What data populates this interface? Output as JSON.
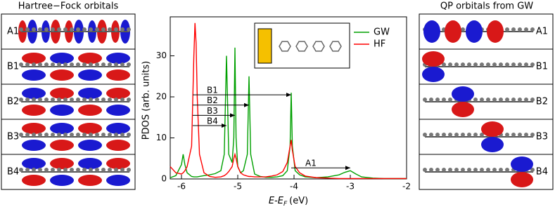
{
  "chart_data": {
    "type": "line",
    "xlabel": {
      "main": "E-E",
      "sub": "F",
      "unit": "(eV)"
    },
    "ylabel": "PDOS (arb. units)",
    "x": [
      -6.2,
      -6.1,
      -6.0,
      -5.97,
      -5.94,
      -5.9,
      -5.82,
      -5.78,
      -5.76,
      -5.74,
      -5.72,
      -5.68,
      -5.6,
      -5.5,
      -5.4,
      -5.3,
      -5.24,
      -5.2,
      -5.16,
      -5.1,
      -5.07,
      -5.05,
      -5.03,
      -5.0,
      -4.95,
      -4.9,
      -4.83,
      -4.8,
      -4.77,
      -4.7,
      -4.6,
      -4.5,
      -4.4,
      -4.3,
      -4.2,
      -4.12,
      -4.07,
      -4.05,
      -4.03,
      -3.98,
      -3.9,
      -3.8,
      -3.6,
      -3.4,
      -3.2,
      -3.1,
      -3.0,
      -2.9,
      -2.8,
      -2.6,
      -2.4,
      -2.2,
      -2.0
    ],
    "series": [
      {
        "name": "GW",
        "color": "#00a000",
        "values": [
          0.3,
          0.8,
          3.5,
          6,
          3.5,
          1.5,
          0.6,
          0.5,
          0.5,
          0.5,
          0.5,
          0.6,
          0.8,
          1,
          1.3,
          2,
          6,
          30,
          6,
          4,
          10,
          32,
          10,
          3,
          1.5,
          2,
          6,
          25,
          6,
          1.2,
          0.6,
          0.4,
          0.4,
          0.5,
          0.8,
          2,
          8,
          21,
          8,
          2,
          1,
          0.5,
          0.3,
          0.5,
          1,
          1.6,
          2,
          1.2,
          0.5,
          0.2,
          0.1,
          0.1,
          0.1
        ]
      },
      {
        "name": "HF",
        "color": "#ff0000",
        "values": [
          3,
          1.5,
          1.2,
          1.5,
          2,
          3,
          8,
          30,
          38,
          33,
          20,
          6,
          1.5,
          0.6,
          0.4,
          0.5,
          0.8,
          1.2,
          1.8,
          3,
          5,
          6,
          5,
          3,
          1.5,
          1,
          0.7,
          0.6,
          0.6,
          0.5,
          0.5,
          0.5,
          0.7,
          1,
          1.8,
          4,
          8,
          9.5,
          7,
          3,
          1.5,
          0.7,
          0.3,
          0.2,
          0.1,
          0.1,
          0.1,
          0.1,
          0.1,
          0.1,
          0.1,
          0.1,
          0.1
        ]
      }
    ],
    "xlim": [
      -6.2,
      -2
    ],
    "xticks": [
      -6,
      -5,
      -4,
      -3,
      -2
    ],
    "ylim": [
      0,
      39.5
    ],
    "yticks": [
      0,
      10,
      20,
      30
    ],
    "legend": "upper-right",
    "annotations": [
      {
        "text": "B1",
        "x": [
          -5.8,
          -4.05
        ],
        "y": 20.5
      },
      {
        "text": "B2",
        "x": [
          -5.8,
          -4.8
        ],
        "y": 18
      },
      {
        "text": "B3",
        "x": [
          -5.8,
          -5.05
        ],
        "y": 15.5
      },
      {
        "text": "B4",
        "x": [
          -5.8,
          -5.2
        ],
        "y": 13
      },
      {
        "text": "A1",
        "x": [
          -4.05,
          -3.0
        ],
        "y": 2.7
      }
    ]
  },
  "panels": {
    "left": {
      "title": "Hartree−Fock orbitals",
      "rows": [
        "A1",
        "B1",
        "B2",
        "B3",
        "B4"
      ]
    },
    "right": {
      "title": "QP orbitals from GW",
      "rows": [
        "A1",
        "B1",
        "B2",
        "B3",
        "B4"
      ]
    }
  }
}
